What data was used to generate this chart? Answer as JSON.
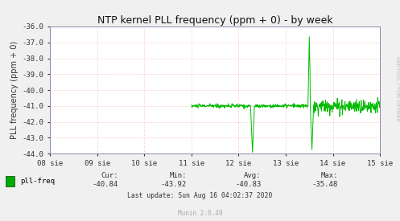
{
  "title": "NTP kernel PLL frequency (ppm + 0) - by week",
  "ylabel": "PLL frequency (ppm + 0)",
  "bg_color": "#f0f0f0",
  "plot_bg_color": "#ffffff",
  "grid_color": "#ffaaaa",
  "line_color": "#00bb00",
  "ylim": [
    -44.0,
    -36.0
  ],
  "yticks": [
    -44.0,
    -43.0,
    -42.0,
    -41.0,
    -40.0,
    -39.0,
    -38.0,
    -37.0,
    -36.0
  ],
  "xtick_labels": [
    "08 sie",
    "09 sie",
    "10 sie",
    "11 sie",
    "12 sie",
    "13 sie",
    "14 sie",
    "15 sie"
  ],
  "legend_label": "pll-freq",
  "legend_color": "#00aa00",
  "cur_val": "-40.84",
  "min_val": "-43.92",
  "avg_val": "-40.83",
  "max_val": "-35.48",
  "last_update": "Last update: Sun Aug 16 04:02:37 2020",
  "munin_ver": "Munin 2.0.49",
  "rrdtool_label": "RRDTOOL / TOBI OETIKER",
  "title_fontsize": 9,
  "axis_label_fontsize": 7,
  "tick_fontsize": 6.5,
  "stats_fontsize": 6.5
}
